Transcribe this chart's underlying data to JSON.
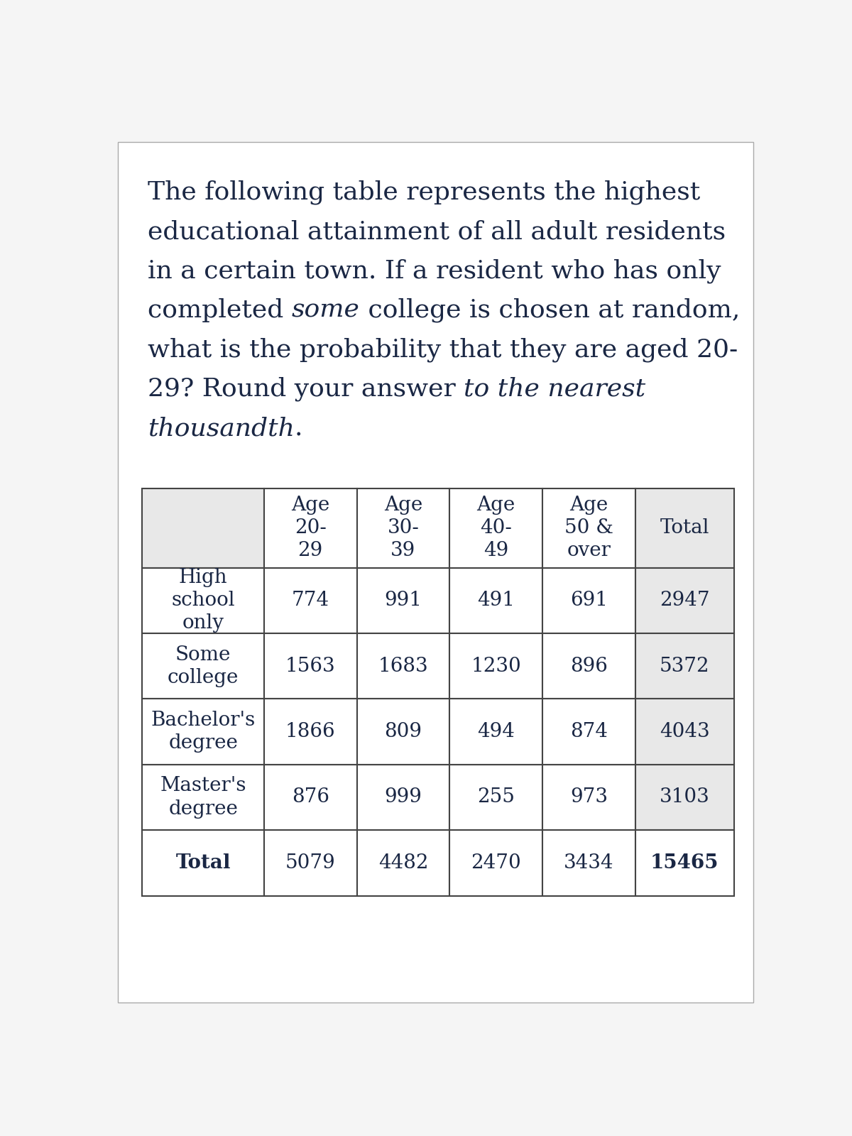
{
  "text_color": "#1a2744",
  "background_color": "#f5f5f5",
  "page_bg": "#ffffff",
  "header_bg": "#e8e8e8",
  "cell_bg": "#ffffff",
  "border_color": "#444444",
  "font_family": "DejaVu Serif",
  "para_fontsize": 26,
  "table_fontsize": 20,
  "col_headers": [
    "",
    "Age\n20-\n29",
    "Age\n30-\n39",
    "Age\n40-\n49",
    "Age\n50 &\nover",
    "Total"
  ],
  "row_labels": [
    "High\nschool\nonly",
    "Some\ncollege",
    "Bachelor's\ndegree",
    "Master's\ndegree",
    "Total"
  ],
  "table_data": [
    [
      "774",
      "991",
      "491",
      "691",
      "2947"
    ],
    [
      "1563",
      "1683",
      "1230",
      "896",
      "5372"
    ],
    [
      "1866",
      "809",
      "494",
      "874",
      "4043"
    ],
    [
      "876",
      "999",
      "255",
      "973",
      "3103"
    ],
    [
      "5079",
      "4482",
      "2470",
      "3434",
      "15465"
    ]
  ],
  "paragraph_lines": [
    [
      [
        "The following table represents the highest",
        "normal"
      ]
    ],
    [
      [
        "educational attainment of all adult residents",
        "normal"
      ]
    ],
    [
      [
        "in a certain town. If a resident who has only",
        "normal"
      ]
    ],
    [
      [
        "completed ",
        "normal"
      ],
      [
        "some",
        "italic"
      ],
      [
        " college is chosen at random,",
        "normal"
      ]
    ],
    [
      [
        "what is the probability that they are aged 20-",
        "normal"
      ]
    ],
    [
      [
        "29? Round your answer ",
        "normal"
      ],
      [
        "to the nearest",
        "italic"
      ]
    ],
    [
      [
        "thousandth",
        "italic"
      ],
      [
        ".",
        "normal"
      ]
    ]
  ]
}
